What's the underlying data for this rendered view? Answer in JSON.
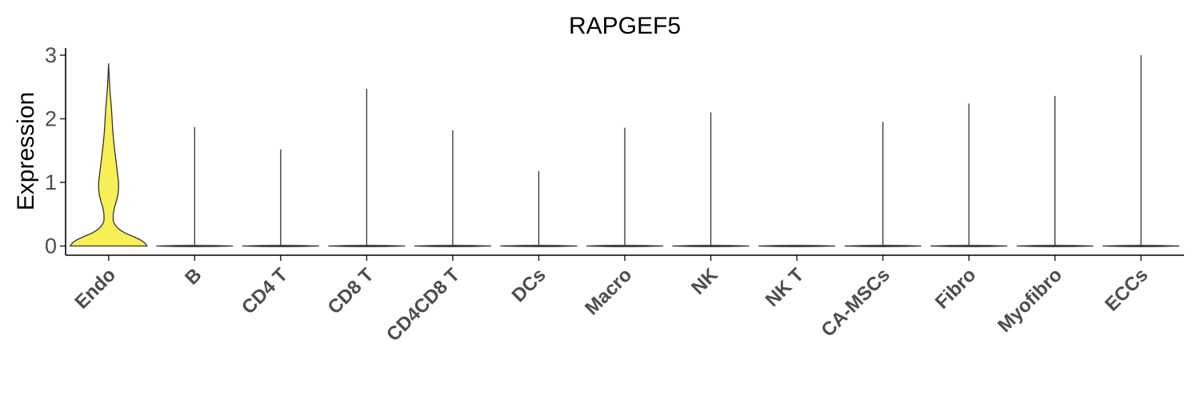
{
  "chart_data": {
    "type": "violin",
    "title": "RAPGEF5",
    "xlabel": "",
    "ylabel": "Expression",
    "ylim": [
      -0.15,
      3.15
    ],
    "yticks": [
      0,
      1,
      2,
      3
    ],
    "fill_color": "#F7EF55",
    "outline_color": "#333333",
    "grid": false,
    "legend": "none",
    "categories": [
      "Endo",
      "B",
      "CD4 T",
      "CD8 T",
      "CD4CD8 T",
      "DCs",
      "Macro",
      "NK",
      "NK T",
      "CA-MSCs",
      "Fibro",
      "Myofibro",
      "ECCs"
    ],
    "max_values": [
      2.87,
      1.87,
      1.52,
      2.47,
      1.82,
      1.18,
      1.86,
      2.1,
      0.0,
      1.95,
      2.24,
      2.36,
      3.0
    ],
    "endo_density": [
      {
        "y": 0.0,
        "w": 1.0
      },
      {
        "y": 0.05,
        "w": 0.94
      },
      {
        "y": 0.1,
        "w": 0.82
      },
      {
        "y": 0.15,
        "w": 0.64
      },
      {
        "y": 0.2,
        "w": 0.44
      },
      {
        "y": 0.25,
        "w": 0.3
      },
      {
        "y": 0.3,
        "w": 0.21
      },
      {
        "y": 0.35,
        "w": 0.15
      },
      {
        "y": 0.4,
        "w": 0.12
      },
      {
        "y": 0.5,
        "w": 0.12
      },
      {
        "y": 0.6,
        "w": 0.15
      },
      {
        "y": 0.7,
        "w": 0.2
      },
      {
        "y": 0.8,
        "w": 0.24
      },
      {
        "y": 0.9,
        "w": 0.26
      },
      {
        "y": 1.0,
        "w": 0.26
      },
      {
        "y": 1.1,
        "w": 0.24
      },
      {
        "y": 1.2,
        "w": 0.22
      },
      {
        "y": 1.3,
        "w": 0.2
      },
      {
        "y": 1.4,
        "w": 0.18
      },
      {
        "y": 1.5,
        "w": 0.16
      },
      {
        "y": 1.6,
        "w": 0.14
      },
      {
        "y": 1.8,
        "w": 0.11
      },
      {
        "y": 2.0,
        "w": 0.09
      },
      {
        "y": 2.2,
        "w": 0.07
      },
      {
        "y": 2.4,
        "w": 0.04
      },
      {
        "y": 2.6,
        "w": 0.02
      },
      {
        "y": 2.8,
        "w": 0.005
      },
      {
        "y": 2.87,
        "w": 0.0
      }
    ]
  }
}
